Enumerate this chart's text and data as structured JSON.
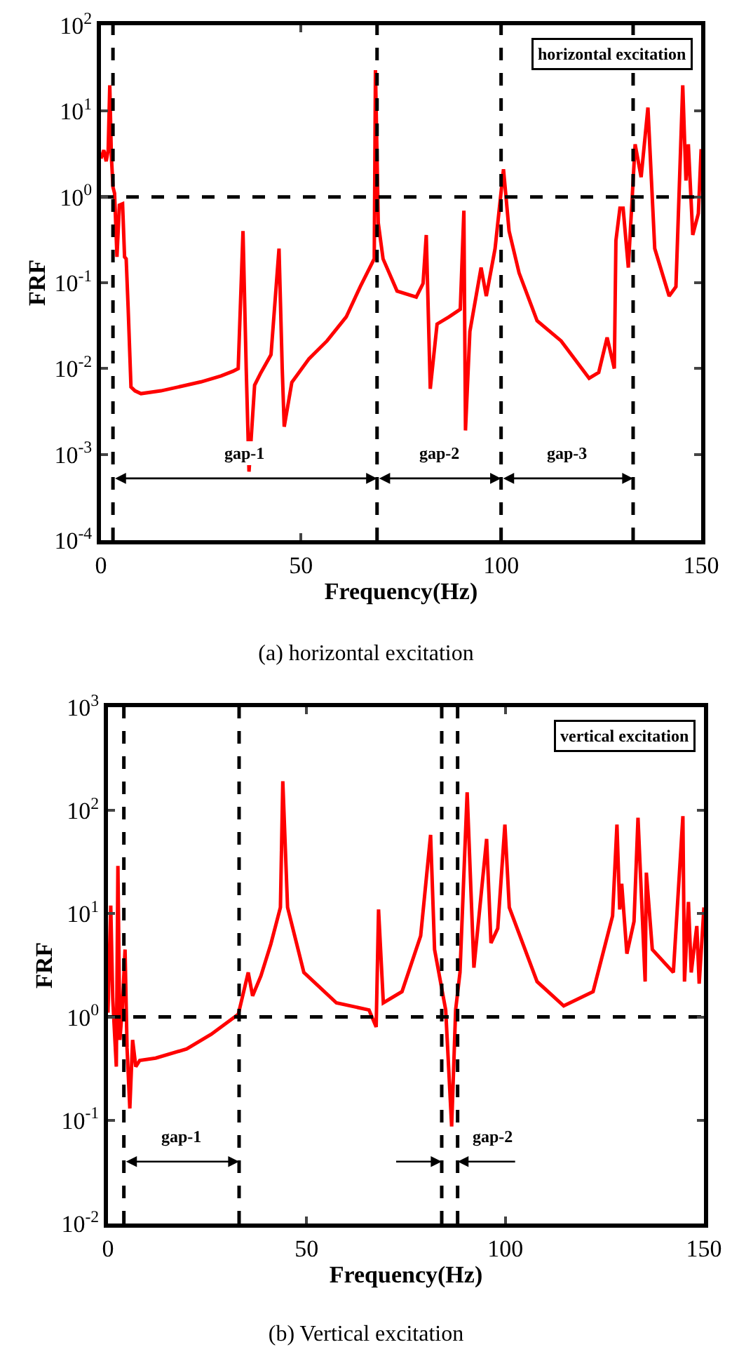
{
  "chart_data": [
    {
      "type": "line",
      "title": "(a) horizontal excitation",
      "xlabel": "Frequency(Hz)",
      "ylabel": "FRF",
      "xlim": [
        0,
        150
      ],
      "xticks": [
        0,
        50,
        100,
        150
      ],
      "ylim": [
        0.0001,
        100
      ],
      "yticks": [
        {
          "value": 0.0001,
          "label": "10$^{-4}$"
        },
        {
          "value": 0.001,
          "label": "10$^{-3}$"
        },
        {
          "value": 0.01,
          "label": "10$^{-2}$"
        },
        {
          "value": 0.1,
          "label": "10$^{-1}$"
        },
        {
          "value": 1,
          "label": "10$^{0}$"
        },
        {
          "value": 10,
          "label": "10$^{1}$"
        },
        {
          "value": 100,
          "label": "10$^{2}$"
        }
      ],
      "log": true,
      "grid": false,
      "marker": "none",
      "line_style": "solid",
      "series": [
        {
          "color": "#ff0000",
          "x": [
            0,
            0.7,
            1.3,
            1.8,
            2.2,
            2.6,
            3.0,
            3.4,
            4.0,
            4.6,
            5.4,
            5.9,
            6.3,
            6.8,
            7.5,
            8.5,
            10,
            15,
            20,
            25,
            30,
            33,
            34.3,
            35.5,
            36.3,
            37,
            38.4,
            40,
            42.5,
            44.5,
            45.3,
            45.8,
            47.7,
            52,
            56.5,
            61.3,
            64.8,
            68.3,
            68.6,
            69.3,
            70.5,
            74,
            78.8,
            80.5,
            81.3,
            82.3,
            84,
            87,
            89.8,
            90.7,
            91.1,
            92.2,
            95,
            96.3,
            98.5,
            100.6,
            102,
            104.5,
            109,
            115,
            122,
            124.4,
            126.5,
            128.3,
            128.7,
            129.7,
            130.5,
            131.8,
            133.5,
            135,
            136.7,
            138.4,
            142,
            143.7,
            145.4,
            146.2,
            146.8,
            147.9,
            149.3,
            150
          ],
          "values": [
            2.8,
            3.5,
            2.6,
            3.5,
            20,
            3,
            1.3,
            1.1,
            0.2,
            0.8,
            0.83,
            0.2,
            0.19,
            0.05,
            0.0061,
            0.0055,
            0.0051,
            0.0055,
            0.0062,
            0.007,
            0.0082,
            0.0093,
            0.01,
            0.4,
            0.01,
            0.00063,
            0.0064,
            0.009,
            0.0145,
            0.25,
            0.01,
            0.0021,
            0.0069,
            0.013,
            0.021,
            0.04,
            0.09,
            0.19,
            30,
            0.5,
            0.19,
            0.08,
            0.068,
            0.098,
            0.36,
            0.0058,
            0.033,
            0.04,
            0.049,
            0.69,
            0.0019,
            0.027,
            0.15,
            0.07,
            0.25,
            2.1,
            0.4,
            0.13,
            0.036,
            0.021,
            0.0077,
            0.009,
            0.023,
            0.01,
            0.31,
            0.74,
            0.74,
            0.15,
            4.1,
            1.7,
            11,
            0.25,
            0.07,
            0.09,
            20,
            1.55,
            4.1,
            0.36,
            0.64,
            3.6
          ]
        }
      ],
      "ref_lines": [
        {
          "axis": "y",
          "value": 1,
          "color": "#000000",
          "line_style": "dashed"
        },
        {
          "axis": "x",
          "value": 3,
          "color": "#000000",
          "line_style": "dashed"
        },
        {
          "axis": "x",
          "value": 69,
          "color": "#000000",
          "line_style": "dashed"
        },
        {
          "axis": "x",
          "value": 100,
          "color": "#000000",
          "line_style": "dashed"
        },
        {
          "axis": "x",
          "value": 133,
          "color": "#000000",
          "line_style": "dashed"
        }
      ],
      "annotations": [
        "horizontal excitation",
        "gap-1",
        "gap-2",
        "gap-3"
      ]
    },
    {
      "type": "line",
      "title": "(b) Vertical excitation",
      "xlabel": "Frequency(Hz)",
      "ylabel": "FRF",
      "xlim": [
        0,
        150
      ],
      "xticks": [
        0,
        50,
        100,
        150
      ],
      "ylim": [
        0.01,
        1000
      ],
      "yticks": [
        {
          "value": 0.01,
          "label": "10$^{-2}$"
        },
        {
          "value": 0.1,
          "label": "10$^{-1}$"
        },
        {
          "value": 1,
          "label": "10$^{0}$"
        },
        {
          "value": 10,
          "label": "10$^{1}$"
        },
        {
          "value": 100,
          "label": "10$^{2}$"
        },
        {
          "value": 1000,
          "label": "10$^{3}$"
        }
      ],
      "log": true,
      "grid": false,
      "marker": "none",
      "line_style": "solid",
      "series": [
        {
          "color": "#ff0000",
          "x": [
            0,
            0.7,
            1.2,
            2.1,
            2.5,
            3.0,
            3.6,
            4.3,
            4.8,
            5.5,
            6.2,
            7,
            8,
            12,
            19.8,
            26,
            32.8,
            35.3,
            36.4,
            38.5,
            41,
            43.4,
            44,
            45.2,
            49.3,
            57.5,
            65.7,
            67.5,
            68.1,
            69.3,
            74,
            78.7,
            81.2,
            82.2,
            85,
            86.5,
            87.5,
            88.6,
            90.4,
            92.1,
            95.3,
            96.4,
            98.1,
            99.9,
            101,
            108,
            114.7,
            122.1,
            127,
            128.1,
            128.8,
            129.3,
            130.6,
            132.4,
            133.4,
            135.2,
            135.5,
            137,
            142.3,
            144.7,
            145.1,
            146.1,
            146.8,
            148.2,
            148.8,
            150
          ],
          "values": [
            1.1,
            12,
            1.5,
            0.33,
            29,
            0.6,
            1.2,
            4.5,
            0.5,
            0.13,
            0.6,
            0.33,
            0.38,
            0.4,
            0.49,
            0.68,
            1.06,
            2.7,
            1.6,
            2.5,
            5.1,
            11.5,
            192,
            11.5,
            2.7,
            1.37,
            1.17,
            0.8,
            11,
            1.37,
            1.76,
            6.1,
            58,
            4.5,
            1.17,
            0.087,
            1.17,
            2.7,
            150,
            3,
            53,
            5.2,
            7.2,
            73,
            11.5,
            2.2,
            1.28,
            1.76,
            9.5,
            73,
            11,
            19.5,
            4.1,
            8.4,
            85,
            2.2,
            25,
            4.5,
            2.7,
            88,
            2.2,
            13,
            2.7,
            7.6,
            2.1,
            11.5
          ]
        }
      ],
      "ref_lines": [
        {
          "axis": "y",
          "value": 1,
          "color": "#000000",
          "line_style": "dashed"
        },
        {
          "axis": "x",
          "value": 4,
          "color": "#000000",
          "line_style": "dashed"
        },
        {
          "axis": "x",
          "value": 33,
          "color": "#000000",
          "line_style": "dashed"
        },
        {
          "axis": "x",
          "value": 84,
          "color": "#000000",
          "line_style": "dashed"
        },
        {
          "axis": "x",
          "value": 88,
          "color": "#000000",
          "line_style": "dashed"
        }
      ],
      "annotations": [
        "vertical excitation",
        "gap-1",
        "gap-2"
      ]
    }
  ]
}
